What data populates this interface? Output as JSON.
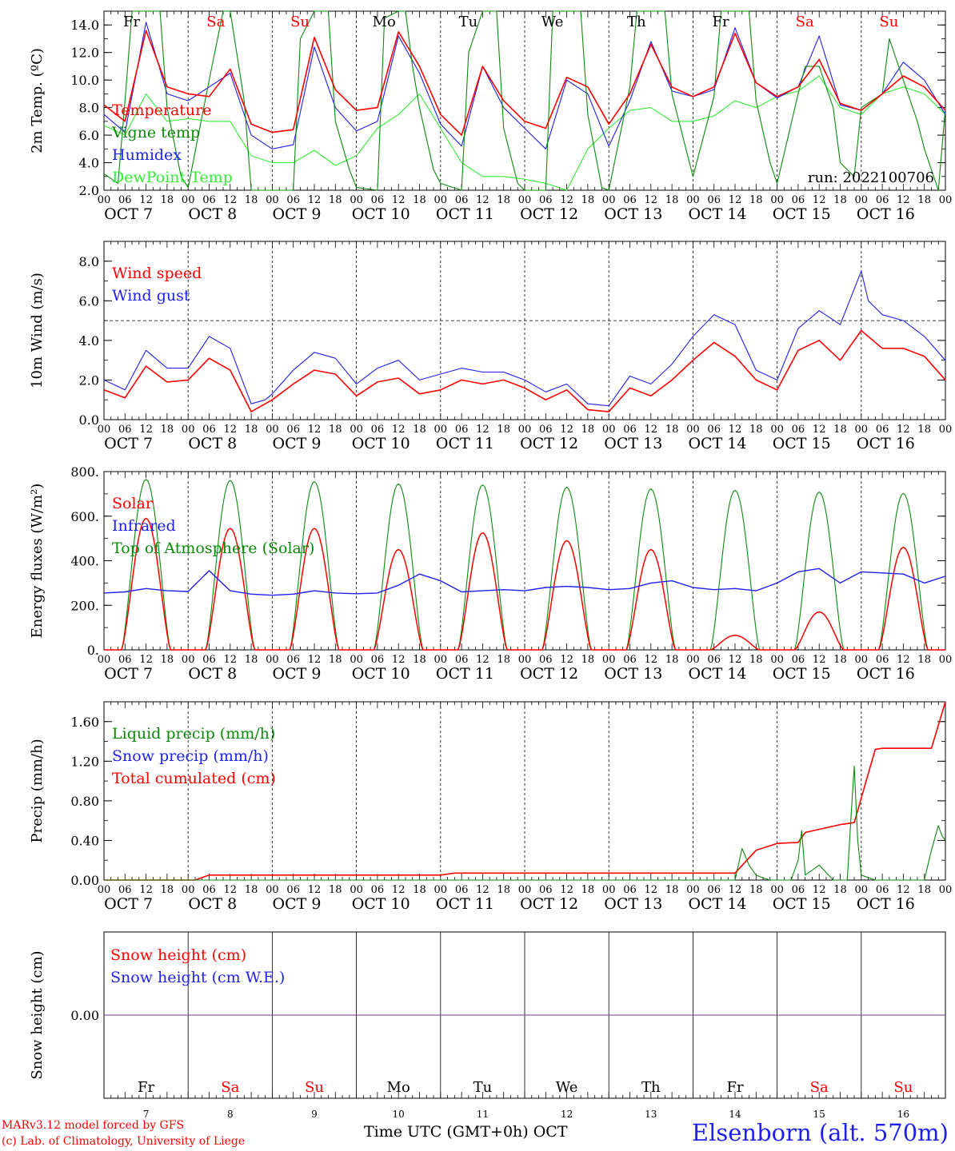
{
  "colors": {
    "red": "#ff0000",
    "darkgreen": "#0a8a0a",
    "blue": "#1f1ff0",
    "lightgreen": "#33ee33",
    "purple": "#7a3a9a",
    "black": "#000000"
  },
  "footer": {
    "credit_line1": "MARv3.12 model forced by GFS",
    "credit_line2": "(c) Lab. of Climatology, University of Liege",
    "x_title": "Time UTC (GMT+0h) OCT",
    "station": "Elsenborn (alt. 570m)"
  },
  "chart_data": [
    {
      "id": "temperature",
      "type": "line",
      "ylabel": "2m Temp. (ºC)",
      "ylim": [
        2,
        15
      ],
      "yticks": [
        2,
        4,
        6,
        8,
        10,
        12,
        14
      ],
      "ytick_labels": [
        "2.0",
        "4.0",
        "6.0",
        "8.0",
        "10.0",
        "12.0",
        "14.0"
      ],
      "day_names": [
        "Fr",
        "Sa",
        "Su",
        "Mo",
        "Tu",
        "We",
        "Th",
        "Fr",
        "Sa",
        "Su"
      ],
      "day_name_colors": [
        "black",
        "red",
        "red",
        "black",
        "black",
        "black",
        "black",
        "black",
        "red",
        "red"
      ],
      "legend": [
        "Temperature",
        "Vigne temp",
        "Humidex",
        "DewPoint Temp"
      ],
      "annotation": "run: 2022100706",
      "series": [
        {
          "name": "Temperature",
          "color": "red",
          "x": [
            0,
            6,
            12,
            18,
            24,
            30,
            36,
            42,
            48,
            54,
            60,
            66,
            72,
            78,
            84,
            90,
            96,
            102,
            108,
            114,
            120,
            126,
            132,
            138,
            144,
            150,
            156,
            162,
            168,
            174,
            180,
            186,
            192,
            198,
            204,
            210,
            216,
            222,
            228,
            234,
            240
          ],
          "y": [
            8.2,
            7.0,
            13.6,
            9.5,
            9.0,
            8.8,
            10.8,
            6.8,
            6.2,
            6.4,
            13.1,
            9.3,
            7.8,
            8.0,
            13.5,
            11.0,
            7.5,
            6.0,
            11.0,
            8.5,
            7.0,
            6.5,
            10.2,
            9.5,
            6.8,
            9.0,
            12.6,
            9.5,
            8.8,
            9.5,
            13.4,
            9.8,
            8.8,
            9.5,
            11.5,
            8.3,
            7.8,
            9.0,
            10.3,
            9.5,
            7.8
          ]
        },
        {
          "name": "Vigne temp",
          "color": "darkgreen",
          "x": [
            0,
            4,
            6,
            8,
            10,
            12,
            16,
            18,
            22,
            24,
            30,
            34,
            36,
            40,
            42,
            46,
            48,
            54,
            56,
            60,
            64,
            66,
            70,
            72,
            78,
            80,
            84,
            86,
            88,
            90,
            94,
            96,
            102,
            104,
            108,
            112,
            114,
            118,
            120,
            126,
            128,
            132,
            136,
            138,
            142,
            144,
            150,
            152,
            156,
            160,
            162,
            166,
            168,
            174,
            176,
            180,
            184,
            186,
            190,
            192,
            198,
            200,
            204,
            208,
            210,
            214,
            216,
            222,
            224,
            228,
            232,
            234,
            238,
            240
          ],
          "y": [
            3.2,
            2.5,
            8.5,
            15,
            15,
            15,
            15,
            8.0,
            3.0,
            2.2,
            10.0,
            15,
            15,
            8.5,
            2.0,
            2.0,
            2.0,
            2.0,
            13.0,
            15,
            15,
            7.0,
            3.5,
            2.2,
            2.0,
            14.5,
            15,
            15,
            11.0,
            8.0,
            3.5,
            2.5,
            2.0,
            12.0,
            15,
            15,
            6.5,
            2.5,
            2.0,
            2.0,
            15,
            15,
            15,
            7.5,
            2.2,
            2.0,
            9.5,
            15,
            15,
            15,
            9.0,
            5.0,
            3.0,
            8.8,
            15,
            15,
            15,
            8.5,
            4.0,
            2.5,
            9.0,
            11.0,
            11.0,
            8.0,
            4.0,
            3.0,
            8.0,
            9.0,
            13.0,
            10.0,
            7.0,
            5.0,
            2.0,
            8.0
          ]
        },
        {
          "name": "Humidex",
          "color": "blue",
          "x": [
            0,
            6,
            12,
            18,
            24,
            30,
            36,
            42,
            48,
            54,
            60,
            66,
            72,
            78,
            84,
            90,
            96,
            102,
            108,
            114,
            120,
            126,
            132,
            138,
            144,
            150,
            156,
            162,
            168,
            174,
            180,
            186,
            192,
            198,
            204,
            210,
            216,
            222,
            228,
            234,
            240
          ],
          "y": [
            7.5,
            6.2,
            14.2,
            9.0,
            8.5,
            9.5,
            10.5,
            6.0,
            5.0,
            5.3,
            12.4,
            8.0,
            6.3,
            7.0,
            13.2,
            10.5,
            6.8,
            5.2,
            11.0,
            8.0,
            6.5,
            5.0,
            10.0,
            9.0,
            5.2,
            8.5,
            12.8,
            9.2,
            8.8,
            9.3,
            13.8,
            9.8,
            8.7,
            9.5,
            13.2,
            8.2,
            7.8,
            9.0,
            11.3,
            10.0,
            7.5
          ]
        },
        {
          "name": "DewPoint Temp",
          "color": "lightgreen",
          "x": [
            0,
            6,
            12,
            18,
            24,
            30,
            36,
            42,
            48,
            54,
            60,
            66,
            72,
            78,
            84,
            90,
            96,
            102,
            108,
            114,
            120,
            126,
            132,
            138,
            144,
            150,
            156,
            162,
            168,
            174,
            180,
            186,
            192,
            198,
            204,
            210,
            216,
            222,
            228,
            234,
            240
          ],
          "y": [
            6.7,
            6.0,
            9.0,
            7.0,
            7.2,
            7.0,
            7.0,
            4.5,
            4.0,
            4.0,
            4.9,
            3.8,
            4.5,
            6.5,
            7.5,
            9.0,
            6.5,
            4.0,
            3.0,
            3.0,
            2.8,
            2.5,
            2.0,
            5.0,
            6.5,
            7.8,
            8.0,
            7.0,
            7.0,
            7.4,
            8.5,
            8.0,
            8.8,
            9.2,
            10.3,
            8.0,
            7.5,
            9.0,
            9.5,
            9.0,
            7.5
          ]
        }
      ]
    },
    {
      "id": "wind",
      "type": "line",
      "ylabel": "10m Wind (m/s)",
      "ylim": [
        0,
        9
      ],
      "yticks": [
        0,
        2,
        4,
        6,
        8
      ],
      "ytick_labels": [
        "0.0",
        "2.0",
        "4.0",
        "6.0",
        "8.0"
      ],
      "ref_line": 5,
      "legend": [
        "Wind speed",
        "Wind gust"
      ],
      "series": [
        {
          "name": "Wind speed",
          "color": "red",
          "x": [
            0,
            6,
            12,
            18,
            24,
            30,
            36,
            42,
            46,
            48,
            54,
            60,
            66,
            72,
            78,
            84,
            90,
            96,
            102,
            108,
            114,
            120,
            126,
            132,
            138,
            144,
            150,
            156,
            162,
            168,
            174,
            180,
            186,
            192,
            198,
            204,
            210,
            216,
            222,
            228,
            234,
            240
          ],
          "y": [
            1.5,
            1.1,
            2.7,
            1.9,
            2.0,
            3.1,
            2.5,
            0.4,
            0.8,
            1.0,
            1.8,
            2.5,
            2.3,
            1.2,
            1.9,
            2.1,
            1.3,
            1.5,
            2.0,
            1.8,
            2.0,
            1.6,
            1.0,
            1.5,
            0.5,
            0.4,
            1.6,
            1.2,
            2.0,
            3.0,
            3.9,
            3.2,
            2.0,
            1.5,
            3.5,
            4.0,
            3.0,
            4.5,
            3.6,
            3.6,
            3.2,
            2.0
          ]
        },
        {
          "name": "Wind gust",
          "color": "blue",
          "x": [
            0,
            6,
            12,
            18,
            24,
            30,
            36,
            42,
            46,
            48,
            54,
            60,
            66,
            72,
            78,
            84,
            90,
            96,
            102,
            108,
            114,
            120,
            126,
            132,
            138,
            144,
            150,
            156,
            162,
            168,
            174,
            180,
            186,
            192,
            198,
            204,
            210,
            216,
            218,
            222,
            228,
            234,
            240
          ],
          "y": [
            2.0,
            1.5,
            3.5,
            2.6,
            2.6,
            4.2,
            3.6,
            0.8,
            1.0,
            1.3,
            2.5,
            3.4,
            3.1,
            1.8,
            2.6,
            3.0,
            2.0,
            2.3,
            2.6,
            2.4,
            2.4,
            2.0,
            1.4,
            1.8,
            0.8,
            0.7,
            2.2,
            1.8,
            2.8,
            4.2,
            5.3,
            4.8,
            2.5,
            2.0,
            4.6,
            5.5,
            4.8,
            7.5,
            6.0,
            5.3,
            5.0,
            4.2,
            3.0
          ]
        }
      ]
    },
    {
      "id": "energy",
      "type": "line",
      "ylabel": "Energy fluxes (W/m²)",
      "ylim": [
        0,
        800
      ],
      "yticks": [
        0,
        200,
        400,
        600,
        800
      ],
      "ytick_labels": [
        "0.",
        "200.",
        "400.",
        "600.",
        "800."
      ],
      "legend": [
        "Solar",
        "Infrared",
        "Top of Atmosphere (Solar)"
      ],
      "toa_peaks": [
        765,
        760,
        755,
        745,
        740,
        730,
        722,
        716,
        708,
        702
      ],
      "solar_peaks": [
        590,
        545,
        545,
        450,
        525,
        490,
        450,
        65,
        170,
        460
      ],
      "infrared": {
        "x": [
          0,
          6,
          12,
          18,
          24,
          30,
          36,
          42,
          48,
          54,
          60,
          66,
          72,
          78,
          84,
          90,
          96,
          102,
          108,
          114,
          120,
          126,
          132,
          138,
          144,
          150,
          156,
          162,
          168,
          174,
          180,
          186,
          192,
          198,
          204,
          210,
          216,
          222,
          228,
          234,
          240
        ],
        "y": [
          255,
          260,
          275,
          265,
          262,
          355,
          265,
          250,
          245,
          250,
          265,
          255,
          252,
          255,
          290,
          340,
          310,
          260,
          265,
          270,
          265,
          280,
          285,
          280,
          270,
          275,
          300,
          310,
          280,
          270,
          275,
          265,
          300,
          350,
          365,
          300,
          350,
          345,
          340,
          300,
          330
        ]
      }
    },
    {
      "id": "precip",
      "type": "line",
      "ylabel": "Precip (mm/h)",
      "ylim": [
        0,
        1.8
      ],
      "yticks": [
        0,
        0.4,
        0.8,
        1.2,
        1.6
      ],
      "ytick_labels": [
        "0.00",
        "0.40",
        "0.80",
        "1.20",
        "1.60"
      ],
      "legend": [
        "Liquid precip (mm/h)",
        "Snow precip (mm/h)",
        "Total cumulated (cm)"
      ],
      "series": [
        {
          "name": "Total cumulated (cm)",
          "color": "red",
          "x": [
            0,
            26,
            30,
            96,
            100,
            180,
            186,
            192,
            198,
            200,
            210,
            212,
            214,
            220,
            222,
            224,
            230,
            236,
            240
          ],
          "y": [
            0,
            0,
            0.05,
            0.05,
            0.07,
            0.07,
            0.3,
            0.37,
            0.38,
            0.48,
            0.56,
            0.57,
            0.58,
            1.32,
            1.33,
            1.33,
            1.33,
            1.33,
            1.8
          ]
        },
        {
          "name": "Liquid precip (mm/h)",
          "color": "darkgreen",
          "x": [
            0,
            180,
            182,
            184,
            186,
            188,
            190,
            196,
            198,
            199,
            200,
            204,
            208,
            212,
            213,
            214,
            215,
            216,
            220,
            234,
            236,
            238,
            239,
            240
          ],
          "y": [
            0,
            0,
            0.32,
            0.15,
            0.05,
            0.02,
            0,
            0,
            0.2,
            0.5,
            0.05,
            0.15,
            0,
            0,
            0.6,
            1.15,
            0.4,
            0.05,
            0,
            0,
            0.3,
            0.55,
            0.45,
            0.4
          ]
        }
      ]
    },
    {
      "id": "snow",
      "type": "line",
      "ylabel": "Snow height (cm)",
      "ylim": [
        -1,
        1
      ],
      "yticks": [
        0
      ],
      "ytick_labels": [
        "0.00"
      ],
      "legend": [
        "Snow height (cm)",
        "Snow height (cm W.E.)"
      ],
      "series": [
        {
          "name": "Snow height (cm)",
          "color": "purple",
          "x": [
            0,
            240
          ],
          "y": [
            0,
            0
          ]
        }
      ]
    }
  ],
  "x_axis": {
    "hour_labels": [
      "00",
      "06",
      "12",
      "18"
    ],
    "final_hour": "00",
    "dates": [
      "OCT  7",
      "OCT  8",
      "OCT  9",
      "OCT 10",
      "OCT 11",
      "OCT 12",
      "OCT 13",
      "OCT 14",
      "OCT 15",
      "OCT 16"
    ],
    "day_numbers": [
      "7",
      "8",
      "9",
      "10",
      "11",
      "12",
      "13",
      "14",
      "15",
      "16"
    ]
  }
}
